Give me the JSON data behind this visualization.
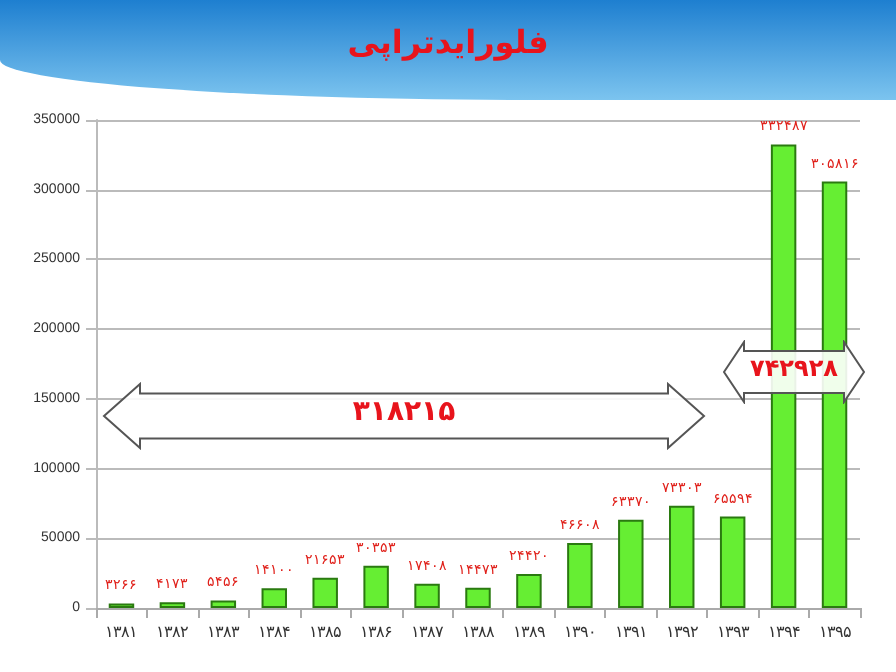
{
  "chart_data": {
    "type": "bar",
    "title": "فلورایدتراپی",
    "categories": [
      "۱۳۸۱",
      "۱۳۸۲",
      "۱۳۸۳",
      "۱۳۸۴",
      "۱۳۸۵",
      "۱۳۸۶",
      "۱۳۸۷",
      "۱۳۸۸",
      "۱۳۸۹",
      "۱۳۹۰",
      "۱۳۹۱",
      "۱۳۹۲",
      "۱۳۹۳",
      "۱۳۹۴",
      "۱۳۹۵"
    ],
    "values": [
      3266,
      4173,
      5456,
      14100,
      21653,
      30353,
      17408,
      14473,
      24420,
      46608,
      63370,
      73303,
      65594,
      332487,
      305816
    ],
    "value_labels": [
      "۳۲۶۶",
      "۴۱۷۳",
      "۵۴۵۶",
      "۱۴۱۰۰",
      "۲۱۶۵۳",
      "۳۰۳۵۳",
      "۱۷۴۰۸",
      "۱۴۴۷۳",
      "۲۴۴۲۰",
      "۴۶۶۰۸",
      "۶۳۳۷۰",
      "۷۳۳۰۳",
      "۶۵۵۹۴",
      "۳۳۲۴۸۷",
      "۳۰۵۸۱۶"
    ],
    "color": "#66ee33",
    "ylim": [
      0,
      350000
    ],
    "yticks": [
      0,
      50000,
      100000,
      150000,
      200000,
      250000,
      300000,
      350000
    ],
    "grid": "y",
    "annotations": [
      "۳۱۸۲۱۵",
      "۷۴۲۹۲۸"
    ]
  }
}
